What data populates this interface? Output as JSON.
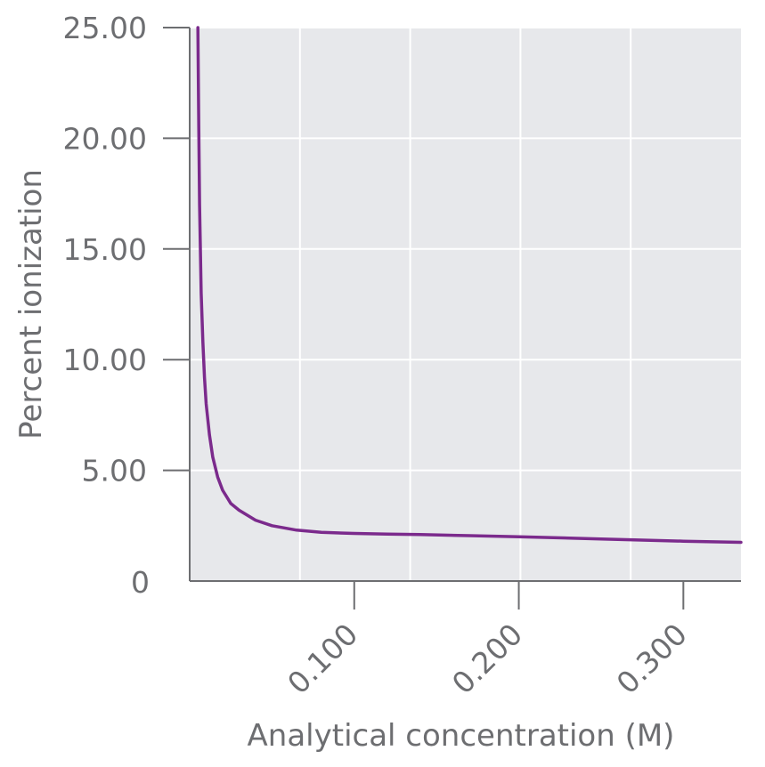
{
  "chart_data": {
    "type": "line",
    "title": "",
    "xlabel": "Analytical concentration (M)",
    "ylabel": "Percent ionization",
    "xlim": [
      0,
      0.335
    ],
    "ylim": [
      0,
      25
    ],
    "x_ticks": [
      0.1,
      0.2,
      0.3
    ],
    "x_tick_labels": [
      "0.100",
      "0.200",
      "0.300"
    ],
    "y_ticks": [
      0,
      5,
      10,
      15,
      20,
      25
    ],
    "y_tick_labels": [
      "0",
      "5.00",
      "10.00",
      "15.00",
      "20.00",
      "25.00"
    ],
    "x_gridlines": [
      0.067,
      0.134,
      0.201,
      0.268
    ],
    "y_gridlines": [
      5,
      10,
      15,
      20,
      25
    ],
    "grid": true,
    "legend": "none",
    "colors": {
      "plot_background": "#e7e8eb",
      "grid": "#ffffff",
      "axis": "#6d6e71",
      "text": "#6d6e71",
      "series": "#7b2a8c"
    },
    "series": [
      {
        "name": "",
        "x": [
          0.005,
          0.0055,
          0.006,
          0.007,
          0.008,
          0.009,
          0.01,
          0.012,
          0.014,
          0.017,
          0.02,
          0.025,
          0.03,
          0.04,
          0.05,
          0.065,
          0.08,
          0.1,
          0.12,
          0.14,
          0.17,
          0.2,
          0.25,
          0.3,
          0.335
        ],
        "values": [
          25.0,
          20.5,
          17.0,
          13.0,
          10.8,
          9.2,
          8.0,
          6.6,
          5.6,
          4.7,
          4.1,
          3.5,
          3.2,
          2.75,
          2.5,
          2.3,
          2.2,
          2.15,
          2.12,
          2.1,
          2.05,
          2.0,
          1.9,
          1.8,
          1.75
        ]
      }
    ]
  }
}
